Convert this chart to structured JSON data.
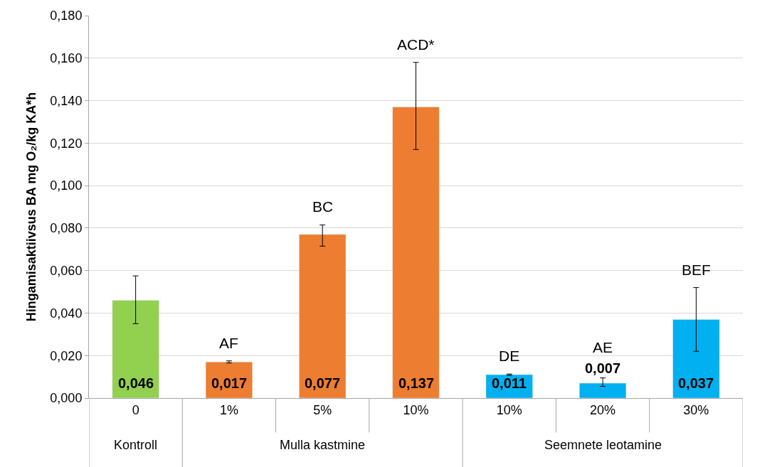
{
  "chart_data": {
    "type": "bar",
    "ylabel": "Hingamisaktiivsus BA mg O₂/kg KA*h",
    "categories": [
      "0",
      "1%",
      "5%",
      "10%",
      "10%",
      "20%",
      "30%"
    ],
    "values": [
      0.046,
      0.017,
      0.077,
      0.137,
      0.011,
      0.007,
      0.037
    ],
    "colors": [
      "#92d050",
      "#ed7d31",
      "#ed7d31",
      "#ed7d31",
      "#00b0f0",
      "#00b0f0",
      "#00b0f0"
    ],
    "errors": [
      [
        0.035,
        0.0575
      ],
      [
        0.0165,
        0.0175
      ],
      [
        0.0715,
        0.0815
      ],
      [
        0.117,
        0.158
      ],
      [
        0.0107,
        0.0113
      ],
      [
        0.0055,
        0.0095
      ],
      [
        0.022,
        0.052
      ]
    ],
    "value_labels": [
      "0,046",
      "0,017",
      "0,077",
      "0,137",
      "0,011",
      "0,007",
      "0,037"
    ],
    "ylim": [
      0,
      0.18
    ],
    "yticks": [
      {
        "value": 0,
        "label": "0,000"
      },
      {
        "value": 0.02,
        "label": "0,020"
      },
      {
        "value": 0.04,
        "label": "0,040"
      },
      {
        "value": 0.06,
        "label": "0,060"
      },
      {
        "value": 0.08,
        "label": "0,080"
      },
      {
        "value": 0.1,
        "label": "0,100"
      },
      {
        "value": 0.12,
        "label": "0,120"
      },
      {
        "value": 0.14,
        "label": "0,140"
      },
      {
        "value": 0.16,
        "label": "0,160"
      },
      {
        "value": 0.18,
        "label": "0,180"
      }
    ],
    "grid": "y",
    "legend": false,
    "annotations": [
      "AF",
      "BC",
      "ACD*",
      "DE",
      "AE",
      "BEF",
      "Kontroll",
      "Mulla kastmine",
      "Seemnete leotamine"
    ]
  }
}
